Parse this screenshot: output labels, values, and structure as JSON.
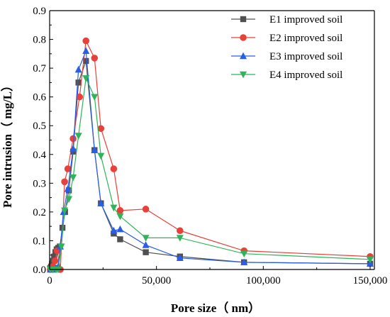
{
  "chart_data": {
    "type": "line",
    "xlabel": "Pore size（ nm）",
    "ylabel": "Pore intrusion（ mg/L）",
    "xlim": [
      0,
      152000
    ],
    "ylim": [
      0,
      0.9
    ],
    "x_ticks": [
      0,
      50000,
      100000,
      150000
    ],
    "x_tick_labels": [
      "0",
      "50,000",
      "100,000",
      "150,000"
    ],
    "y_ticks": [
      0.0,
      0.1,
      0.2,
      0.3,
      0.4,
      0.5,
      0.6,
      0.7,
      0.8,
      0.9
    ],
    "y_tick_labels": [
      "0.0",
      "0.1",
      "0.2",
      "0.3",
      "0.4",
      "0.5",
      "0.6",
      "0.7",
      "0.8",
      "0.9"
    ],
    "grid": false,
    "legend_position": "top-right",
    "series": [
      {
        "name": "E1 improved soil",
        "color": "#505050",
        "marker": "square",
        "points": [
          [
            300,
            0.005
          ],
          [
            700,
            0.01
          ],
          [
            1100,
            0.02
          ],
          [
            1600,
            0.03
          ],
          [
            2100,
            0.045
          ],
          [
            2700,
            0.06
          ],
          [
            3300,
            0.07
          ],
          [
            4000,
            0.075
          ],
          [
            4800,
            0.08
          ],
          [
            6000,
            0.145
          ],
          [
            7200,
            0.2
          ],
          [
            9000,
            0.275
          ],
          [
            11000,
            0.41
          ],
          [
            13500,
            0.65
          ],
          [
            17000,
            0.725
          ],
          [
            21000,
            0.415
          ],
          [
            24000,
            0.23
          ],
          [
            30000,
            0.125
          ],
          [
            33000,
            0.105
          ],
          [
            45000,
            0.06
          ],
          [
            61000,
            0.045
          ],
          [
            91000,
            0.025
          ],
          [
            150000,
            0.02
          ]
        ]
      },
      {
        "name": "E2 improved soil",
        "color": "#e8403a",
        "marker": "circle",
        "points": [
          [
            300,
            0.0
          ],
          [
            800,
            0.005
          ],
          [
            1500,
            0.01
          ],
          [
            2500,
            0.03
          ],
          [
            3500,
            0.065
          ],
          [
            5000,
            0.0
          ],
          [
            7000,
            0.305
          ],
          [
            8500,
            0.35
          ],
          [
            11000,
            0.455
          ],
          [
            14000,
            0.6
          ],
          [
            17000,
            0.795
          ],
          [
            21000,
            0.735
          ],
          [
            24000,
            0.49
          ],
          [
            30000,
            0.35
          ],
          [
            33000,
            0.205
          ],
          [
            45000,
            0.21
          ],
          [
            61000,
            0.135
          ],
          [
            91000,
            0.065
          ],
          [
            150000,
            0.045
          ]
        ]
      },
      {
        "name": "E3 improved soil",
        "color": "#2a5ee8",
        "marker": "triangle-up",
        "points": [
          [
            300,
            0.0
          ],
          [
            1000,
            0.0
          ],
          [
            2000,
            0.0
          ],
          [
            3000,
            0.005
          ],
          [
            4000,
            0.01
          ],
          [
            5000,
            0.08
          ],
          [
            6500,
            0.2
          ],
          [
            8500,
            0.28
          ],
          [
            11000,
            0.42
          ],
          [
            13500,
            0.695
          ],
          [
            17000,
            0.76
          ],
          [
            21000,
            0.415
          ],
          [
            24000,
            0.23
          ],
          [
            30000,
            0.135
          ],
          [
            33000,
            0.14
          ],
          [
            45000,
            0.085
          ],
          [
            61000,
            0.04
          ],
          [
            91000,
            0.025
          ],
          [
            150000,
            0.02
          ]
        ]
      },
      {
        "name": "E4 improved soil",
        "color": "#2fb45a",
        "marker": "triangle-down",
        "points": [
          [
            300,
            0.0
          ],
          [
            1500,
            0.0
          ],
          [
            3000,
            0.0
          ],
          [
            4000,
            0.0
          ],
          [
            5500,
            0.08
          ],
          [
            7000,
            0.205
          ],
          [
            9000,
            0.245
          ],
          [
            11000,
            0.32
          ],
          [
            13500,
            0.465
          ],
          [
            17000,
            0.665
          ],
          [
            21000,
            0.6
          ],
          [
            24000,
            0.395
          ],
          [
            30000,
            0.215
          ],
          [
            33000,
            0.185
          ],
          [
            45000,
            0.11
          ],
          [
            61000,
            0.11
          ],
          [
            91000,
            0.055
          ],
          [
            150000,
            0.035
          ]
        ]
      }
    ]
  }
}
